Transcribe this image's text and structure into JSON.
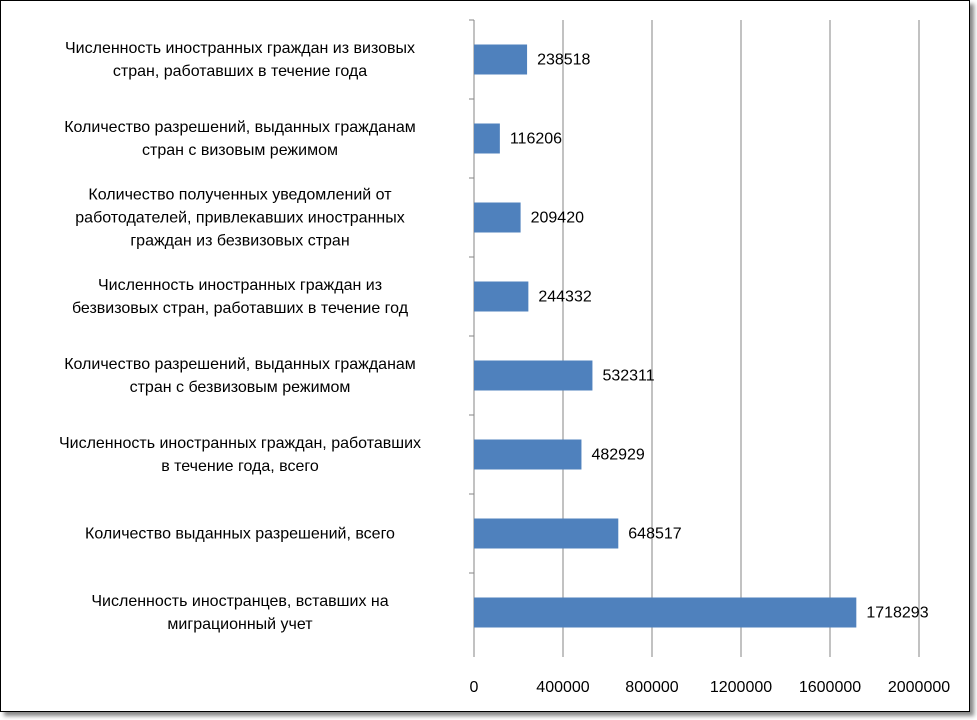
{
  "chart_data": {
    "type": "bar",
    "orientation": "horizontal",
    "categories": [
      "Численность иностранных граждан из визовых\nстран, работавших в течение года",
      "Количество разрешений, выданных гражданам\nстран с визовым режимом",
      "Количество полученных уведомлений от\nработодателей, привлекавших иностранных\nграждан из безвизовых стран",
      "Численность иностранных граждан из\nбезвизовых стран, работавших в течение год",
      "Количество разрешений, выданных гражданам\nстран с безвизовым режимом",
      "Численность иностранных граждан, работавших\nв течение года, всего",
      "Количество выданных разрешений, всего",
      "Численность иностранцев, вставших на\nмиграционный учет"
    ],
    "values": [
      238518,
      116206,
      209420,
      244332,
      532311,
      482929,
      648517,
      1718293
    ],
    "color": "#4f81bd",
    "xlim": [
      0,
      2000000
    ],
    "xticks": [
      0,
      400000,
      800000,
      1200000,
      1600000,
      2000000
    ],
    "grid": true
  }
}
